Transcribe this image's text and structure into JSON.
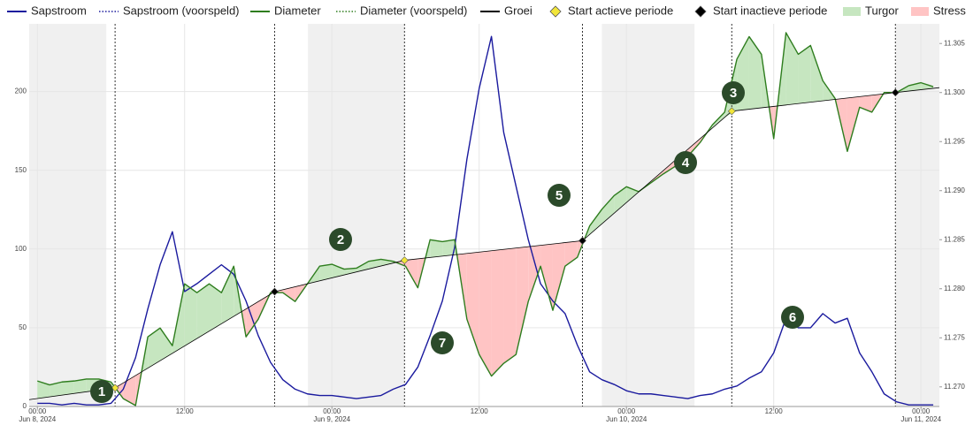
{
  "chart_data": {
    "type": "line",
    "xlim": [
      "2024-06-07T23:20",
      "2024-06-11T01:30"
    ],
    "xticks": [
      {
        "value": "2024-06-08T00:00",
        "label": "00:00",
        "date": "Jun 8, 2024"
      },
      {
        "value": "2024-06-08T12:00",
        "label": "12:00"
      },
      {
        "value": "2024-06-09T00:00",
        "label": "00:00",
        "date": "Jun 9, 2024"
      },
      {
        "value": "2024-06-09T12:00",
        "label": "12:00"
      },
      {
        "value": "2024-06-10T00:00",
        "label": "00:00",
        "date": "Jun 10, 2024"
      },
      {
        "value": "2024-06-10T12:00",
        "label": "12:00"
      },
      {
        "value": "2024-06-11T00:00",
        "label": "00:00",
        "date": "Jun 11, 2024"
      }
    ],
    "ylim": [
      0,
      243
    ],
    "yticks": [
      0,
      50,
      100,
      150,
      200
    ],
    "y2lim": [
      11.268,
      11.307
    ],
    "y2ticks": [
      {
        "value": 11.27,
        "label": "11.270"
      },
      11.275,
      {
        "value": 11.28,
        "label": "11.280"
      },
      11.285,
      {
        "value": 11.29,
        "label": "11.290"
      },
      11.295,
      {
        "value": 11.3,
        "label": "11.300"
      },
      11.305
    ],
    "grid": true,
    "shaded_periods": [
      [
        "2024-06-07T23:20",
        "2024-06-08T05:37"
      ],
      [
        "2024-06-08T22:03",
        "2024-06-09T05:55"
      ],
      [
        "2024-06-09T22:00",
        "2024-06-10T05:33"
      ],
      [
        "2024-06-10T21:55",
        "2024-06-11T01:30"
      ]
    ],
    "x": [
      "2024-06-08T00:00",
      "2024-06-08T01:00",
      "2024-06-08T02:00",
      "2024-06-08T03:00",
      "2024-06-08T04:00",
      "2024-06-08T05:00",
      "2024-06-08T06:00",
      "2024-06-08T07:00",
      "2024-06-08T08:00",
      "2024-06-08T09:00",
      "2024-06-08T10:00",
      "2024-06-08T11:00",
      "2024-06-08T12:00",
      "2024-06-08T13:00",
      "2024-06-08T14:00",
      "2024-06-08T15:00",
      "2024-06-08T16:00",
      "2024-06-08T17:00",
      "2024-06-08T18:00",
      "2024-06-08T19:00",
      "2024-06-08T20:00",
      "2024-06-08T21:00",
      "2024-06-08T22:00",
      "2024-06-08T23:00",
      "2024-06-09T00:00",
      "2024-06-09T01:00",
      "2024-06-09T02:00",
      "2024-06-09T03:00",
      "2024-06-09T04:00",
      "2024-06-09T05:00",
      "2024-06-09T06:00",
      "2024-06-09T07:00",
      "2024-06-09T08:00",
      "2024-06-09T09:00",
      "2024-06-09T10:00",
      "2024-06-09T11:00",
      "2024-06-09T12:00",
      "2024-06-09T13:00",
      "2024-06-09T14:00",
      "2024-06-09T15:00",
      "2024-06-09T16:00",
      "2024-06-09T17:00",
      "2024-06-09T18:00",
      "2024-06-09T19:00",
      "2024-06-09T20:00",
      "2024-06-09T21:00",
      "2024-06-09T22:00",
      "2024-06-09T23:00",
      "2024-06-10T00:00",
      "2024-06-10T01:00",
      "2024-06-10T02:00",
      "2024-06-10T03:00",
      "2024-06-10T04:00",
      "2024-06-10T05:00",
      "2024-06-10T06:00",
      "2024-06-10T07:00",
      "2024-06-10T08:00",
      "2024-06-10T09:00",
      "2024-06-10T10:00",
      "2024-06-10T11:00",
      "2024-06-10T12:00",
      "2024-06-10T13:00",
      "2024-06-10T14:00",
      "2024-06-10T15:00",
      "2024-06-10T16:00",
      "2024-06-10T17:00",
      "2024-06-10T18:00",
      "2024-06-10T19:00",
      "2024-06-10T20:00",
      "2024-06-10T21:00",
      "2024-06-10T22:00",
      "2024-06-10T23:00",
      "2024-06-11T00:00",
      "2024-06-11T01:00"
    ],
    "series": [
      {
        "name": "Sapstroom",
        "color": "#1a1a9e",
        "values": [
          2,
          2,
          1,
          2,
          1,
          1,
          2,
          11,
          31,
          62,
          90,
          111,
          73,
          78,
          84,
          90,
          84,
          67,
          45,
          28,
          17,
          11,
          8,
          7,
          7,
          6,
          5,
          6,
          7,
          11,
          14,
          25,
          45,
          67,
          101,
          157,
          202,
          235,
          174,
          140,
          106,
          78,
          67,
          59,
          39,
          22,
          17,
          14,
          10,
          8,
          8,
          7,
          6,
          5,
          7,
          8,
          11,
          13,
          18,
          22,
          34,
          56,
          50,
          50,
          59,
          53,
          56,
          34,
          22,
          8,
          3,
          1,
          1,
          1
        ]
      },
      {
        "name": "Diameter",
        "color": "#2e7d1e",
        "axis": "y2",
        "values": [
          11.2706,
          11.2702,
          11.2705,
          11.2706,
          11.2708,
          11.2708,
          11.2705,
          11.2688,
          11.2681,
          11.2751,
          11.276,
          11.2742,
          11.2805,
          11.2796,
          11.2805,
          11.2796,
          11.2823,
          11.2751,
          11.2769,
          11.2796,
          11.2796,
          11.2787,
          11.2805,
          11.2823,
          11.2825,
          11.282,
          11.2821,
          11.2828,
          11.283,
          11.2828,
          11.2823,
          11.2801,
          11.285,
          11.2848,
          11.285,
          11.2769,
          11.2733,
          11.2711,
          11.2724,
          11.2733,
          11.2787,
          11.2823,
          11.2778,
          11.2823,
          11.2832,
          11.2864,
          11.2881,
          11.2895,
          11.2904,
          11.2899,
          11.2908,
          11.2917,
          11.2925,
          11.2935,
          11.2949,
          11.2967,
          11.298,
          11.3034,
          11.3057,
          11.3039,
          11.2953,
          11.3061,
          11.3039,
          11.3048,
          11.3012,
          11.2994,
          11.294,
          11.2985,
          11.298,
          11.3,
          11.3,
          11.3007,
          11.301,
          11.3006
        ]
      }
    ],
    "growth": {
      "name": "Groei",
      "color": "#000000",
      "axis": "y2",
      "x": [
        "2024-06-07T23:20",
        "2024-06-08T06:20",
        "2024-06-08T19:20",
        "2024-06-09T05:55",
        "2024-06-09T20:25",
        "2024-06-10T08:35",
        "2024-06-10T21:55",
        "2024-06-11T01:30"
      ],
      "values": [
        11.2687,
        11.2699,
        11.2797,
        11.2829,
        11.2849,
        11.2981,
        11.3,
        11.3005
      ]
    },
    "markers": [
      {
        "name": "Start actieve periode",
        "color": "#f2e63a",
        "x": [
          "2024-06-08T06:20",
          "2024-06-09T05:55",
          "2024-06-10T08:35"
        ],
        "values": [
          11.2699,
          11.2829,
          11.2981
        ]
      },
      {
        "name": "Start inactieve periode",
        "color": "#000000",
        "x": [
          "2024-06-08T19:20",
          "2024-06-09T20:25",
          "2024-06-10T21:55"
        ],
        "values": [
          11.2797,
          11.2849,
          11.3
        ]
      }
    ],
    "fills": [
      {
        "name": "Turgor",
        "color": "#c6e6c0"
      },
      {
        "name": "Stress",
        "color": "#ffc4c4"
      }
    ],
    "forecast_legend": [
      {
        "name": "Sapstroom (voorspeld)",
        "color": "#1a1a9e"
      },
      {
        "name": "Diameter (voorspeld)",
        "color": "#2e7d1e"
      }
    ],
    "annotations": [
      "1",
      "2",
      "3",
      "4",
      "5",
      "6",
      "7"
    ]
  }
}
